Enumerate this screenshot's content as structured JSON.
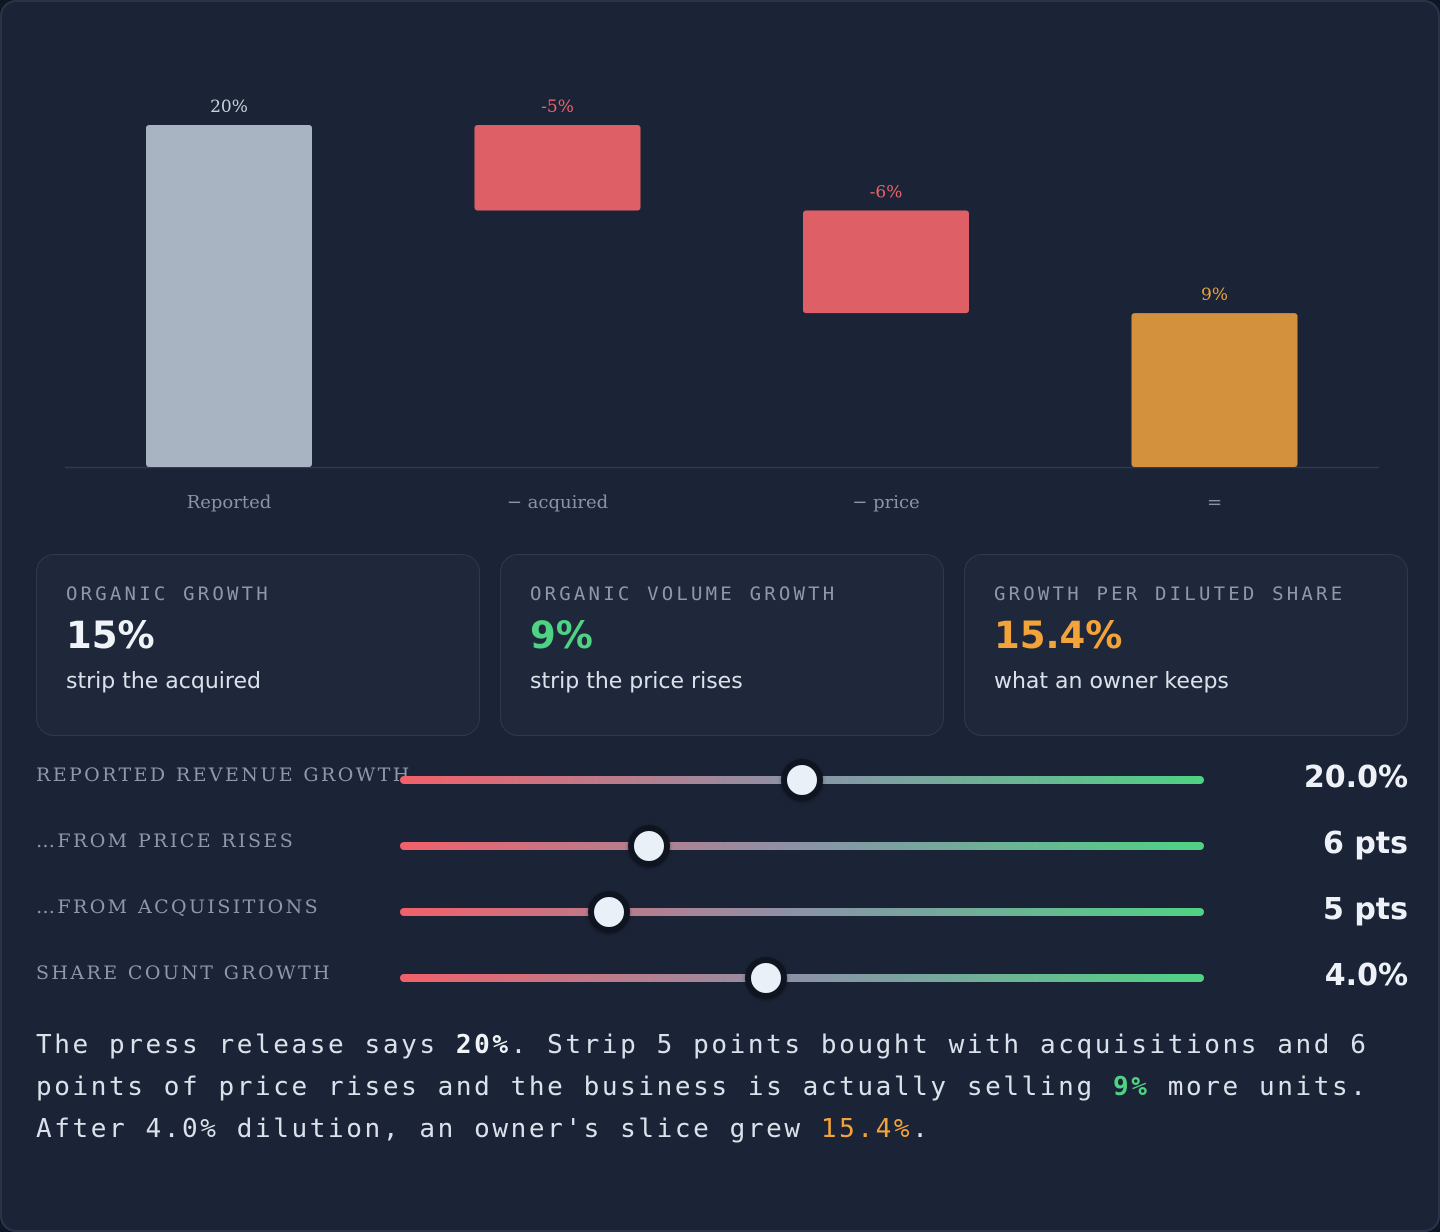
{
  "chart_data": {
    "type": "bar",
    "subtype": "waterfall",
    "categories": [
      "Reported",
      "− acquired",
      "− price",
      "="
    ],
    "values": [
      20,
      -5,
      -6,
      9
    ],
    "value_labels": [
      "20%",
      "-5%",
      "-6%",
      "9%"
    ],
    "ylim": [
      0,
      20
    ],
    "grid": false,
    "legend": "none"
  },
  "colors": {
    "reported": "#a9b4c3",
    "negative": "#de6066",
    "result": "#d3913d",
    "white_value": "#f0f3f8",
    "green": "#4ed283",
    "orange": "#f2a33a",
    "negative_label": "#e8646c",
    "reported_label": "#c9d0da",
    "result_label": "#e8a241"
  },
  "cards": [
    {
      "title": "Organic growth",
      "value": "15%",
      "value_color": "#f0f3f8",
      "sub": "strip the acquired"
    },
    {
      "title": "Organic volume growth",
      "value": "9%",
      "value_color": "#4ed283",
      "sub": "strip the price rises"
    },
    {
      "title": "Growth per diluted share",
      "value": "15.4%",
      "value_color": "#f2a33a",
      "sub": "what an owner keeps"
    }
  ],
  "sliders": [
    {
      "label": "Reported revenue growth",
      "value_text": "20.0%",
      "fraction": 0.5
    },
    {
      "label": "…from price rises",
      "value_text": "6 pts",
      "fraction": 0.31
    },
    {
      "label": "…from acquisitions",
      "value_text": "5 pts",
      "fraction": 0.26
    },
    {
      "label": "Share count growth",
      "value_text": "4.0%",
      "fraction": 0.455
    }
  ],
  "summary": {
    "t1": "The press release says ",
    "b1": "20%",
    "t2": ". Strip 5 points bought with acquisitions and 6 points of price rises and the business is actually selling ",
    "b2": "9%",
    "t3": " more units. After 4.0% dilution, an owner's slice grew ",
    "b3": "15.4%",
    "t4": "."
  }
}
